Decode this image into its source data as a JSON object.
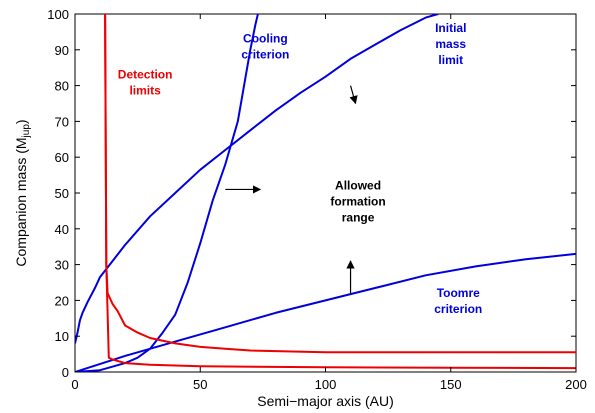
{
  "chart_data": {
    "type": "line",
    "title": "",
    "xlabel": "Semi−major axis (AU)",
    "ylabel": "Companion mass (M",
    "ylabel_sub": "jup",
    "ylabel_close": ")",
    "xlim": [
      0,
      200
    ],
    "ylim": [
      0,
      100
    ],
    "xticks": [
      "0",
      "50",
      "100",
      "150",
      "200"
    ],
    "yticks": [
      "0",
      "10",
      "20",
      "30",
      "40",
      "50",
      "60",
      "70",
      "80",
      "90",
      "100"
    ],
    "grid": false,
    "colors": {
      "blue": "#0000dd",
      "red": "#ee0000",
      "black": "#000000"
    },
    "series": [
      {
        "color": "#0000dd",
        "points": [
          [
            0,
            8
          ],
          [
            1,
            11
          ],
          [
            2,
            14.5
          ],
          [
            3,
            16.5
          ],
          [
            5,
            19.5
          ],
          [
            8,
            23.5
          ],
          [
            10,
            26.5
          ],
          [
            15,
            31
          ],
          [
            20,
            35.5
          ],
          [
            30,
            43.5
          ],
          [
            40,
            50
          ],
          [
            50,
            56.5
          ],
          [
            60,
            62
          ],
          [
            70,
            67.5
          ],
          [
            80,
            73
          ],
          [
            90,
            78
          ],
          [
            100,
            82.5
          ],
          [
            110,
            87.5
          ],
          [
            120,
            91.5
          ],
          [
            130,
            95.5
          ],
          [
            140,
            99
          ],
          [
            145,
            100
          ]
        ]
      },
      {
        "color": "#0000dd",
        "points": [
          [
            0,
            0
          ],
          [
            20,
            4.5
          ],
          [
            40,
            8.5
          ],
          [
            60,
            12.5
          ],
          [
            80,
            16.5
          ],
          [
            100,
            20
          ],
          [
            120,
            23.5
          ],
          [
            140,
            27
          ],
          [
            160,
            29.5
          ],
          [
            180,
            31.5
          ],
          [
            200,
            33
          ]
        ]
      },
      {
        "color": "#0000dd",
        "points": [
          [
            0,
            0
          ],
          [
            10,
            0.5
          ],
          [
            20,
            2.5
          ],
          [
            25,
            4
          ],
          [
            30,
            6.5
          ],
          [
            35,
            11
          ],
          [
            40,
            16
          ],
          [
            45,
            25
          ],
          [
            50,
            36
          ],
          [
            55,
            48
          ],
          [
            60,
            58
          ],
          [
            65,
            70
          ],
          [
            68,
            82
          ],
          [
            70,
            90
          ],
          [
            72,
            97
          ],
          [
            73,
            100
          ]
        ]
      },
      {
        "color": "#ee0000",
        "points": [
          [
            12,
            100
          ],
          [
            12.5,
            30
          ],
          [
            13,
            22
          ],
          [
            15,
            19
          ],
          [
            17,
            17
          ],
          [
            20,
            13
          ],
          [
            25,
            11
          ],
          [
            30,
            9.5
          ],
          [
            40,
            8
          ],
          [
            50,
            7
          ],
          [
            60,
            6.5
          ],
          [
            70,
            6
          ],
          [
            100,
            5.5
          ],
          [
            150,
            5.5
          ],
          [
            200,
            5.5
          ]
        ]
      },
      {
        "color": "#ee0000",
        "points": [
          [
            12,
            100
          ],
          [
            12.5,
            30
          ],
          [
            13.5,
            4
          ],
          [
            15,
            3.5
          ],
          [
            20,
            2.5
          ],
          [
            30,
            2
          ],
          [
            50,
            1.6
          ],
          [
            100,
            1.3
          ],
          [
            150,
            1.2
          ],
          [
            200,
            1.1
          ]
        ]
      }
    ],
    "annotations": [
      {
        "key": "cooling",
        "lines": [
          "Cooling",
          "criterion"
        ],
        "color": "#0000dd",
        "x": 76,
        "y": 92,
        "anchor": "middle"
      },
      {
        "key": "initial",
        "lines": [
          "Initial",
          "mass",
          "limit"
        ],
        "color": "#0000dd",
        "x": 150,
        "y": 95,
        "anchor": "middle"
      },
      {
        "key": "detection",
        "lines": [
          "Detection",
          "limits"
        ],
        "color": "#ee0000",
        "x": 28,
        "y": 82,
        "anchor": "middle"
      },
      {
        "key": "allowed",
        "lines": [
          "Allowed",
          "formation",
          "range"
        ],
        "color": "#000000",
        "x": 113,
        "y": 51,
        "anchor": "middle"
      },
      {
        "key": "toomre",
        "lines": [
          "Toomre",
          "criterion"
        ],
        "color": "#0000dd",
        "x": 153,
        "y": 21,
        "anchor": "middle"
      }
    ],
    "arrows": [
      {
        "from": [
          110,
          80
        ],
        "to": [
          112,
          75
        ]
      },
      {
        "from": [
          60,
          51
        ],
        "to": [
          74,
          51
        ]
      },
      {
        "from": [
          110,
          22
        ],
        "to": [
          110,
          31
        ]
      }
    ]
  }
}
